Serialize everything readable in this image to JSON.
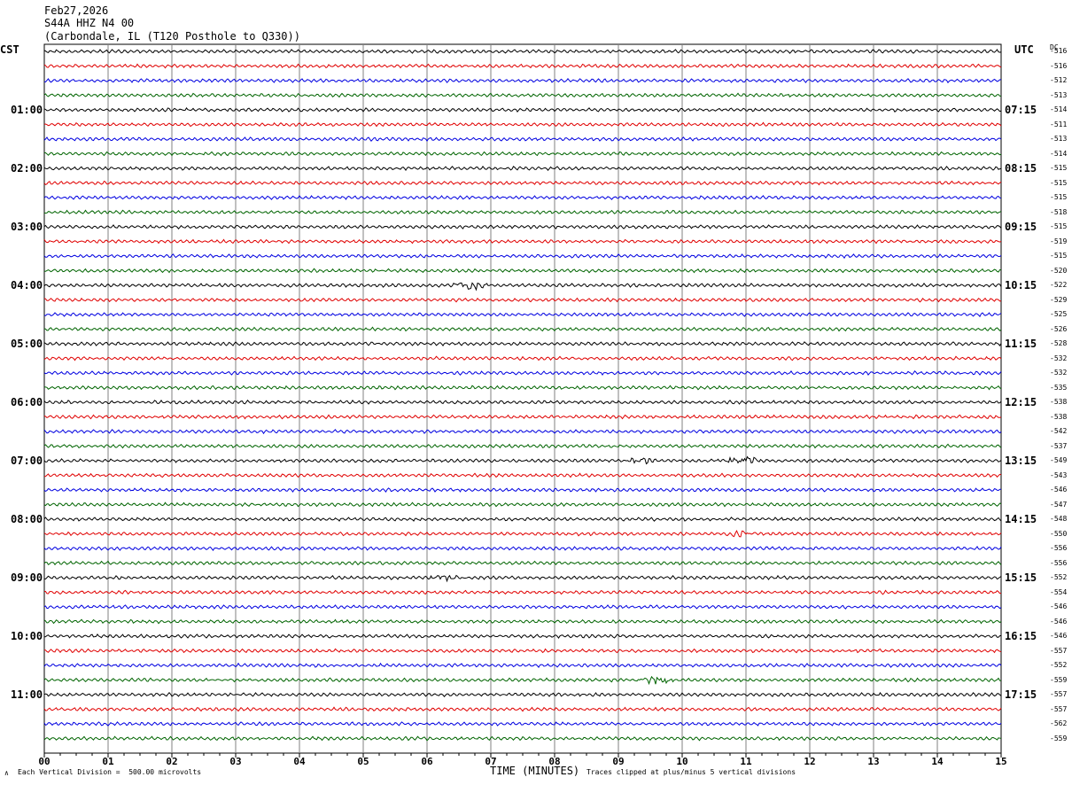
{
  "header": {
    "date": "Feb27,2026",
    "station": "S44A HHZ N4 00",
    "location": "(Carbondale, IL (T120 Posthole to Q330))"
  },
  "left_zone": "CST",
  "right_zone": "UTC",
  "dc_label": "DC",
  "footer": {
    "scale": "Each Vertical Division =  500.00 microvolts",
    "xlabel": "TIME (MINUTES)",
    "clip_note": "Traces clipped at plus/minus 5 vertical divisions",
    "corner_mark": "∧"
  },
  "colors": {
    "cycle": [
      "#000000",
      "#e00000",
      "#0000e0",
      "#006400"
    ],
    "grid": "#808080"
  },
  "chart_data": {
    "type": "line",
    "title": "",
    "xlabel": "TIME (MINUTES)",
    "ylabel": "",
    "xlim": [
      0,
      15
    ],
    "x_ticks": [
      "00",
      "01",
      "02",
      "03",
      "04",
      "05",
      "06",
      "07",
      "08",
      "09",
      "10",
      "11",
      "12",
      "13",
      "14",
      "15"
    ],
    "rows": 48,
    "cst_labels": [
      "01:00",
      "02:00",
      "03:00",
      "04:00",
      "05:00",
      "06:00",
      "07:00",
      "08:00",
      "09:00",
      "10:00",
      "11:00"
    ],
    "utc_labels": [
      "07:15",
      "08:15",
      "09:15",
      "10:15",
      "11:15",
      "12:15",
      "13:15",
      "14:15",
      "15:15",
      "16:15",
      "17:15"
    ],
    "dc_offsets": [
      -516,
      -516,
      -512,
      -513,
      -514,
      -511,
      -513,
      -514,
      -515,
      -515,
      -515,
      -518,
      -515,
      -519,
      -515,
      -520,
      -522,
      -529,
      -525,
      -526,
      -528,
      -532,
      -532,
      -535,
      -538,
      -538,
      -542,
      -537,
      -549,
      -543,
      -546,
      -547,
      -548,
      -550,
      -556,
      -556,
      -552,
      -554,
      -546,
      -546,
      -546,
      -557,
      -552,
      -559,
      -557,
      -557,
      -562,
      -559
    ],
    "events": [
      {
        "row": 16,
        "minute": 6.7,
        "amplitude": 5
      },
      {
        "row": 28,
        "minute": 9.3,
        "amplitude": 4
      },
      {
        "row": 28,
        "minute": 10.8,
        "amplitude": 3
      },
      {
        "row": 28,
        "minute": 11.0,
        "amplitude": 4
      },
      {
        "row": 33,
        "minute": 10.9,
        "amplitude": 3
      },
      {
        "row": 36,
        "minute": 6.3,
        "amplitude": 3
      },
      {
        "row": 43,
        "minute": 9.6,
        "amplitude": 5
      }
    ]
  }
}
